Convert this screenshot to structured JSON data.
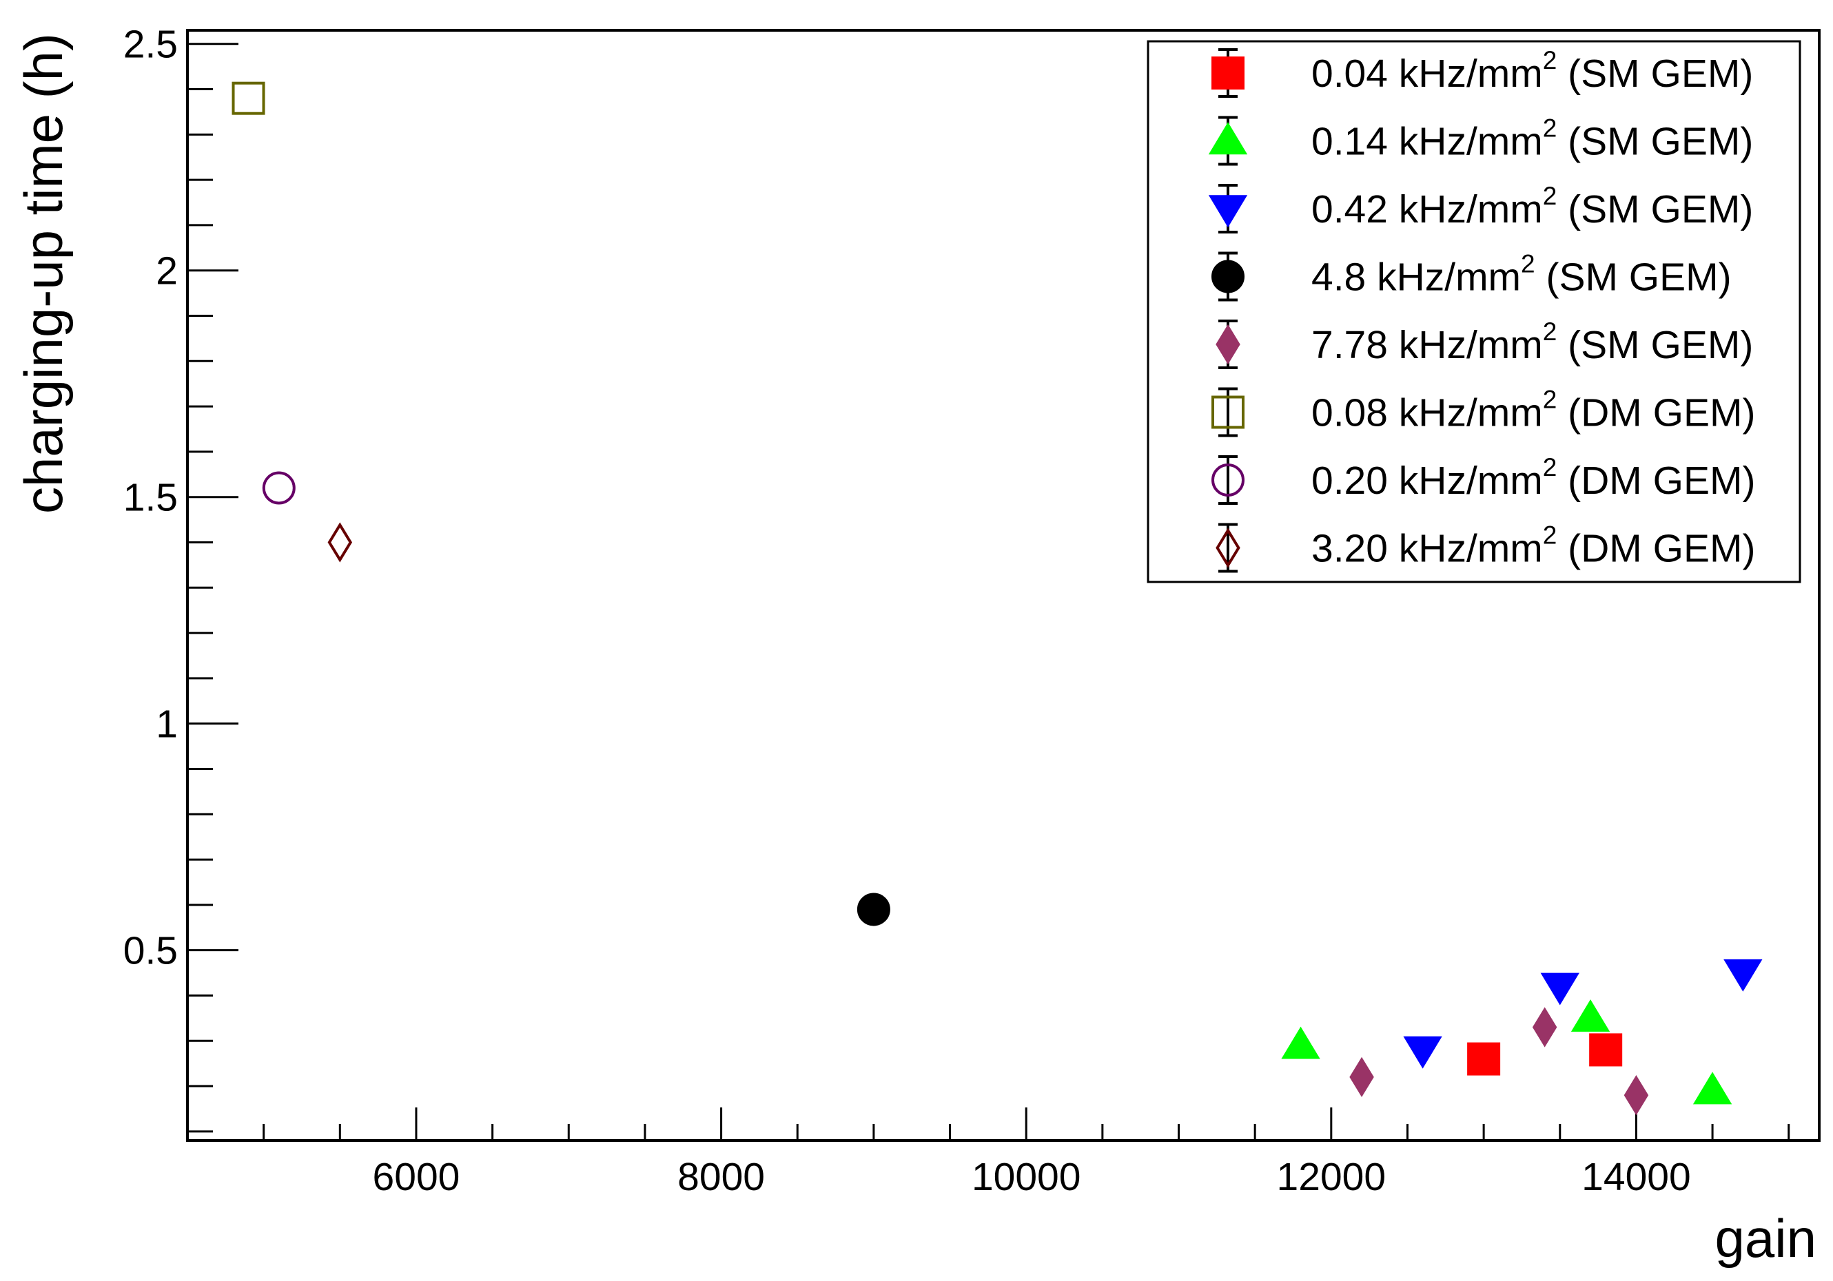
{
  "chart_data": {
    "type": "scatter",
    "title": "",
    "xlabel": "gain",
    "ylabel": "charging-up time (h)",
    "xlim": [
      4500,
      15200
    ],
    "ylim": [
      0.08,
      2.53
    ],
    "x_ticks": [
      6000,
      8000,
      10000,
      12000,
      14000
    ],
    "x_tick_labels": [
      "6000",
      "8000",
      "10000",
      "12000",
      "14000"
    ],
    "y_ticks": [
      0.5,
      1,
      1.5,
      2,
      2.5
    ],
    "y_tick_labels": [
      "0.5",
      "1",
      "1.5",
      "2",
      "2.5"
    ],
    "grid": false,
    "legend_position": "top-right",
    "series": [
      {
        "name": "0.04 kHz/mm",
        "sup": "2",
        "suffix": " (SM GEM)",
        "marker": "square",
        "fill": "#ff0000",
        "stroke": "#ff0000",
        "points": [
          [
            13000,
            0.26
          ],
          [
            13800,
            0.28
          ]
        ]
      },
      {
        "name": "0.14 kHz/mm",
        "sup": "2",
        "suffix": " (SM GEM)",
        "marker": "triangle-up",
        "fill": "#00ff00",
        "stroke": "#00ff00",
        "points": [
          [
            11800,
            0.29
          ],
          [
            13700,
            0.35
          ],
          [
            14500,
            0.19
          ]
        ]
      },
      {
        "name": "0.42 kHz/mm",
        "sup": "2",
        "suffix": " (SM GEM)",
        "marker": "triangle-down",
        "fill": "#0000ff",
        "stroke": "#0000ff",
        "points": [
          [
            12600,
            0.28
          ],
          [
            13500,
            0.42
          ],
          [
            14700,
            0.45
          ]
        ]
      },
      {
        "name": "4.8 kHz/mm",
        "sup": "2",
        "suffix": " (SM GEM)",
        "marker": "circle",
        "fill": "#000000",
        "stroke": "#000000",
        "points": [
          [
            9000,
            0.59
          ]
        ]
      },
      {
        "name": "7.78 kHz/mm",
        "sup": "2",
        "suffix": " (SM GEM)",
        "marker": "diamond",
        "fill": "#993366",
        "stroke": "#993366",
        "points": [
          [
            12200,
            0.22
          ],
          [
            13400,
            0.33
          ],
          [
            14000,
            0.18
          ]
        ]
      },
      {
        "name": "0.08 kHz/mm",
        "sup": "2",
        "suffix": " (DM GEM)",
        "marker": "square-open",
        "fill": "none",
        "stroke": "#666600",
        "points": [
          [
            4900,
            2.38
          ]
        ]
      },
      {
        "name": "0.20 kHz/mm",
        "sup": "2",
        "suffix": " (DM GEM)",
        "marker": "circle-open",
        "fill": "none",
        "stroke": "#660066",
        "points": [
          [
            5100,
            1.52
          ]
        ]
      },
      {
        "name": "3.20 kHz/mm",
        "sup": "2",
        "suffix": " (DM GEM)",
        "marker": "diamond-open",
        "fill": "none",
        "stroke": "#660000",
        "points": [
          [
            5500,
            1.4
          ]
        ]
      }
    ]
  }
}
